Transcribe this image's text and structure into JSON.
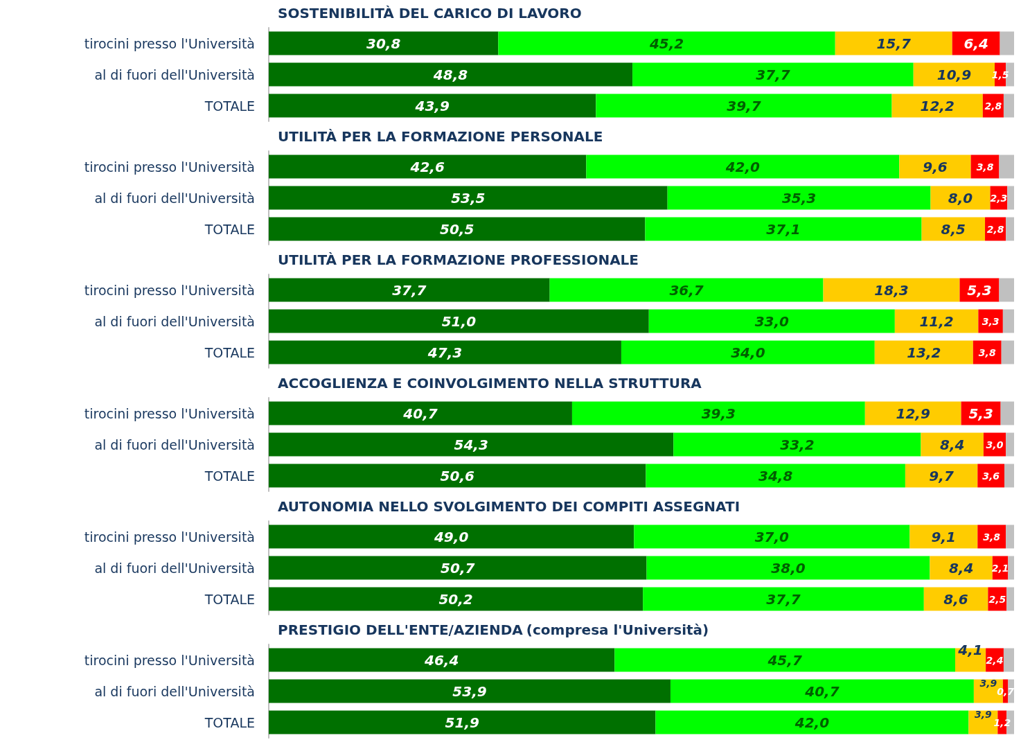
{
  "chart_data": [
    {
      "type": "bar",
      "orientation": "horizontal",
      "stacked": true,
      "title": "SOSTENIBILITÀ DEL CARICO DI LAVORO",
      "categories": [
        "tirocini presso l'Università",
        "al di fuori dell'Università",
        "TOTALE"
      ],
      "xlim": [
        0,
        100
      ],
      "tick_labels": "y",
      "series": [
        {
          "color": "#007000",
          "values": [
            30.8,
            48.8,
            43.9
          ],
          "value_labels": [
            "30,8",
            "48,8",
            "43,9"
          ]
        },
        {
          "color": "#00ff00",
          "values": [
            45.2,
            37.7,
            39.7
          ],
          "value_labels": [
            "45,2",
            "37,7",
            "39,7"
          ]
        },
        {
          "color": "#ffcc00",
          "values": [
            15.7,
            10.9,
            12.2
          ],
          "value_labels": [
            "15,7",
            "10,9",
            "12,2"
          ]
        },
        {
          "color": "#ff0000",
          "values": [
            6.4,
            1.5,
            2.8
          ],
          "value_labels": [
            "6,4",
            "1,5",
            "2,8"
          ]
        },
        {
          "color": "#c0c0c0",
          "values": [
            1.9,
            1.1,
            1.4
          ]
        }
      ]
    },
    {
      "type": "bar",
      "orientation": "horizontal",
      "stacked": true,
      "title": "UTILITÀ PER LA FORMAZIONE PERSONALE",
      "categories": [
        "tirocini presso l'Università",
        "al di fuori dell'Università",
        "TOTALE"
      ],
      "xlim": [
        0,
        100
      ],
      "tick_labels": "y",
      "series": [
        {
          "color": "#007000",
          "values": [
            42.6,
            53.5,
            50.5
          ],
          "value_labels": [
            "42,6",
            "53,5",
            "50,5"
          ]
        },
        {
          "color": "#00ff00",
          "values": [
            42.0,
            35.3,
            37.1
          ],
          "value_labels": [
            "42,0",
            "35,3",
            "37,1"
          ]
        },
        {
          "color": "#ffcc00",
          "values": [
            9.6,
            8.0,
            8.5
          ],
          "value_labels": [
            "9,6",
            "8,0",
            "8,5"
          ]
        },
        {
          "color": "#ff0000",
          "values": [
            3.8,
            2.3,
            2.8
          ],
          "value_labels": [
            "3,8",
            "2,3",
            "2,8"
          ]
        },
        {
          "color": "#c0c0c0",
          "values": [
            2.0,
            0.9,
            1.1
          ]
        }
      ]
    },
    {
      "type": "bar",
      "orientation": "horizontal",
      "stacked": true,
      "title": "UTILITÀ PER LA FORMAZIONE PROFESSIONALE",
      "categories": [
        "tirocini presso l'Università",
        "al di fuori dell'Università",
        "TOTALE"
      ],
      "xlim": [
        0,
        100
      ],
      "tick_labels": "y",
      "series": [
        {
          "color": "#007000",
          "values": [
            37.7,
            51.0,
            47.3
          ],
          "value_labels": [
            "37,7",
            "51,0",
            "47,3"
          ]
        },
        {
          "color": "#00ff00",
          "values": [
            36.7,
            33.0,
            34.0
          ],
          "value_labels": [
            "36,7",
            "33,0",
            "34,0"
          ]
        },
        {
          "color": "#ffcc00",
          "values": [
            18.3,
            11.2,
            13.2
          ],
          "value_labels": [
            "18,3",
            "11,2",
            "13,2"
          ]
        },
        {
          "color": "#ff0000",
          "values": [
            5.3,
            3.3,
            3.8
          ],
          "value_labels": [
            "5,3",
            "3,3",
            "3,8"
          ]
        },
        {
          "color": "#c0c0c0",
          "values": [
            2.0,
            1.5,
            1.7
          ]
        }
      ]
    },
    {
      "type": "bar",
      "orientation": "horizontal",
      "stacked": true,
      "title": "ACCOGLIENZA E COINVOLGIMENTO NELLA STRUTTURA",
      "categories": [
        "tirocini presso l'Università",
        "al di fuori dell'Università",
        "TOTALE"
      ],
      "xlim": [
        0,
        100
      ],
      "tick_labels": "y",
      "series": [
        {
          "color": "#007000",
          "values": [
            40.7,
            54.3,
            50.6
          ],
          "value_labels": [
            "40,7",
            "54,3",
            "50,6"
          ]
        },
        {
          "color": "#00ff00",
          "values": [
            39.3,
            33.2,
            34.8
          ],
          "value_labels": [
            "39,3",
            "33,2",
            "34,8"
          ]
        },
        {
          "color": "#ffcc00",
          "values": [
            12.9,
            8.4,
            9.7
          ],
          "value_labels": [
            "12,9",
            "8,4",
            "9,7"
          ]
        },
        {
          "color": "#ff0000",
          "values": [
            5.3,
            3.0,
            3.6
          ],
          "value_labels": [
            "5,3",
            "3,0",
            "3,6"
          ]
        },
        {
          "color": "#c0c0c0",
          "values": [
            1.8,
            1.1,
            1.3
          ]
        }
      ]
    },
    {
      "type": "bar",
      "orientation": "horizontal",
      "stacked": true,
      "title": "AUTONOMIA NELLO SVOLGIMENTO DEI COMPITI ASSEGNATI",
      "categories": [
        "tirocini presso l'Università",
        "al di fuori dell'Università",
        "TOTALE"
      ],
      "xlim": [
        0,
        100
      ],
      "tick_labels": "y",
      "series": [
        {
          "color": "#007000",
          "values": [
            49.0,
            50.7,
            50.2
          ],
          "value_labels": [
            "49,0",
            "50,7",
            "50,2"
          ]
        },
        {
          "color": "#00ff00",
          "values": [
            37.0,
            38.0,
            37.7
          ],
          "value_labels": [
            "37,0",
            "38,0",
            "37,7"
          ]
        },
        {
          "color": "#ffcc00",
          "values": [
            9.1,
            8.4,
            8.6
          ],
          "value_labels": [
            "9,1",
            "8,4",
            "8,6"
          ]
        },
        {
          "color": "#ff0000",
          "values": [
            3.8,
            2.1,
            2.5
          ],
          "value_labels": [
            "3,8",
            "2,1",
            "2,5"
          ]
        },
        {
          "color": "#c0c0c0",
          "values": [
            1.1,
            0.8,
            1.0
          ]
        }
      ]
    },
    {
      "type": "bar",
      "orientation": "horizontal",
      "stacked": true,
      "title": "PRESTIGIO DELL'ENTE/AZIENDA",
      "subtitle": "(compresa l'Università)",
      "categories": [
        "tirocini presso l'Università",
        "al di fuori dell'Università",
        "TOTALE"
      ],
      "xlim": [
        0,
        100
      ],
      "tick_labels": "y",
      "series": [
        {
          "color": "#007000",
          "values": [
            46.4,
            53.9,
            51.9
          ],
          "value_labels": [
            "46,4",
            "53,9",
            "51,9"
          ]
        },
        {
          "color": "#00ff00",
          "values": [
            45.7,
            40.7,
            42.0
          ],
          "value_labels": [
            "45,7",
            "40,7",
            "42,0"
          ]
        },
        {
          "color": "#ffcc00",
          "values": [
            4.1,
            3.9,
            3.9
          ],
          "value_labels": [
            "4,1",
            "3,9",
            "3,9"
          ]
        },
        {
          "color": "#ff0000",
          "values": [
            2.4,
            0.7,
            1.2
          ],
          "value_labels": [
            "2,4",
            "0,7",
            "1,2"
          ]
        },
        {
          "color": "#c0c0c0",
          "values": [
            1.4,
            0.8,
            1.0
          ]
        }
      ]
    }
  ]
}
